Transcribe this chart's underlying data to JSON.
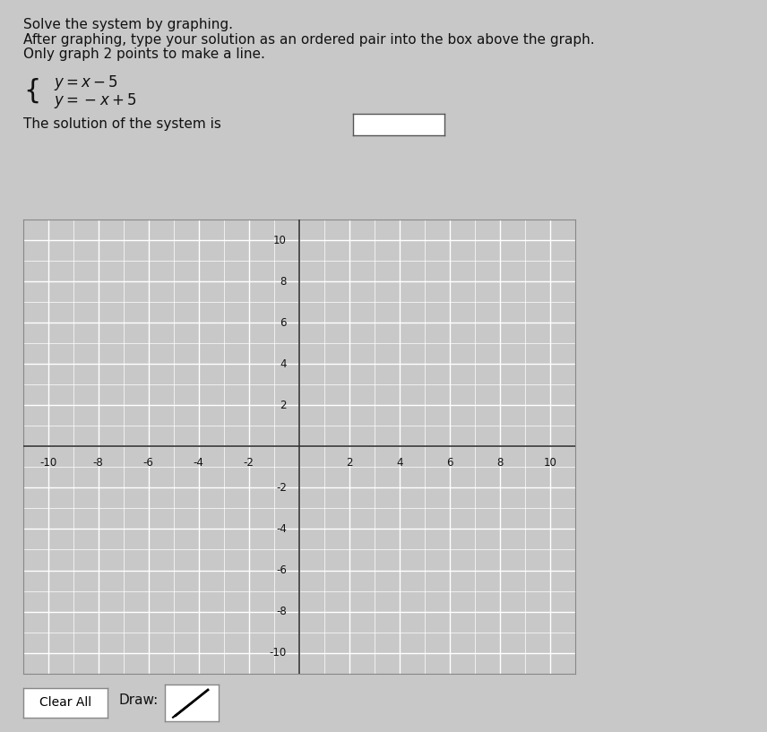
{
  "title_lines": [
    "Solve the system by graphing.",
    "After graphing, type your solution as an ordered pair into the box above the graph.",
    "Only graph 2 points to make a line."
  ],
  "equation1": "y = x - 5",
  "equation2": "y = -x + 5",
  "solution_label": "The solution of the system is",
  "xlim": [
    -11,
    11
  ],
  "ylim": [
    -11,
    11
  ],
  "xticks": [
    -10,
    -8,
    -6,
    -4,
    -2,
    2,
    4,
    6,
    8,
    10
  ],
  "yticks": [
    -10,
    -8,
    -6,
    -4,
    -2,
    2,
    4,
    6,
    8,
    10
  ],
  "grid_color": "#cccccc",
  "bg_color": "#d0d0d0",
  "graph_bg_color": "#c8c8c8",
  "axis_color": "#333333",
  "text_color": "#111111",
  "button_label1": "Clear All",
  "button_label2": "Draw:",
  "outer_bg": "#c8c8c8"
}
